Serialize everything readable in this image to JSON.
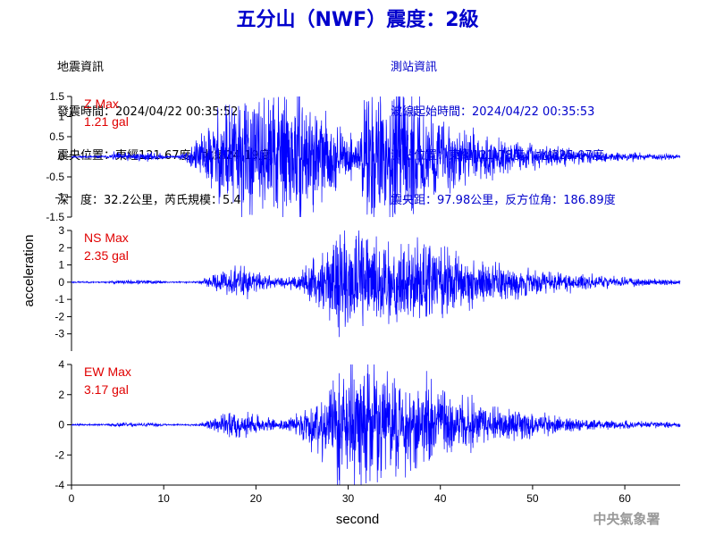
{
  "title": "五分山（NWF）震度：2級",
  "event_info": {
    "heading": "地震資訊",
    "origin_time": "發震時間：2024/04/22 00:35:52",
    "epicenter": "震央位置：東經121.67度，北緯24.19度",
    "depth_magnitude": "深　度：32.2公里，芮氏規模：5.4"
  },
  "station_info": {
    "heading": "測站資訊",
    "wave_start": "波線起始時間：2024/04/22 00:35:53",
    "location": "測站位置：東經121.78度，北緯25.07度",
    "distance_azimuth": "震央距：97.98公里，反方位角：186.89度"
  },
  "credit": "中央氣象署",
  "colors": {
    "title": "#0000cc",
    "trace": "#0000ff",
    "max_label": "#e00000",
    "credit": "#999999"
  },
  "chart_data": {
    "type": "line",
    "xlabel": "second",
    "ylabel": "acceleration",
    "xlim": [
      0,
      66
    ],
    "xticks": [
      "0",
      "10",
      "20",
      "30",
      "40",
      "50",
      "60"
    ],
    "xtick_values": [
      0,
      10,
      20,
      30,
      40,
      50,
      60
    ],
    "grid": false,
    "panels": [
      {
        "name": "Z Max",
        "max_value": "1.21 gal",
        "ylim": [
          -1.5,
          1.5
        ],
        "yticks": [
          "-1.5",
          "-1",
          "-0.5",
          "0",
          "0.5",
          "1",
          "1.5"
        ],
        "ytick_values": [
          -1.5,
          -1,
          -0.5,
          0,
          0.5,
          1,
          1.5
        ],
        "events": [
          [
            4.5,
            0.05,
            0.6,
            5,
            0.4
          ],
          [
            16.8,
            1.0,
            5.5,
            2.5,
            4
          ],
          [
            22.8,
            0.8,
            3,
            3,
            4
          ],
          [
            31.8,
            1.05,
            0.8,
            4,
            8
          ]
        ],
        "noise": 0.02,
        "seed": 11
      },
      {
        "name": "NS Max",
        "max_value": "2.35 gal",
        "ylim": [
          -4,
          3
        ],
        "yticks": [
          "-3",
          "-2",
          "-1",
          "0",
          "1",
          "2",
          "3"
        ],
        "ytick_values": [
          -3,
          -2,
          -1,
          0,
          1,
          2,
          3
        ],
        "events": [
          [
            4.5,
            0.05,
            0.6,
            5,
            0.4
          ],
          [
            17.2,
            0.6,
            4,
            1.5,
            3
          ],
          [
            29.5,
            1.9,
            7,
            1.5,
            7
          ],
          [
            38,
            1.0,
            10,
            2,
            10
          ]
        ],
        "noise": 0.03,
        "seed": 23
      },
      {
        "name": "EW Max",
        "max_value": "3.17 gal",
        "ylim": [
          -4,
          4
        ],
        "yticks": [
          "-4",
          "-2",
          "0",
          "2",
          "4"
        ],
        "ytick_values": [
          -4,
          -2,
          0,
          2,
          4
        ],
        "events": [
          [
            4.5,
            0.05,
            0.6,
            5,
            0.4
          ],
          [
            17.2,
            0.6,
            4,
            1.5,
            3
          ],
          [
            29.5,
            2.6,
            7,
            1.5,
            7
          ],
          [
            37,
            1.1,
            12,
            2,
            9
          ]
        ],
        "noise": 0.04,
        "seed": 37
      }
    ]
  }
}
